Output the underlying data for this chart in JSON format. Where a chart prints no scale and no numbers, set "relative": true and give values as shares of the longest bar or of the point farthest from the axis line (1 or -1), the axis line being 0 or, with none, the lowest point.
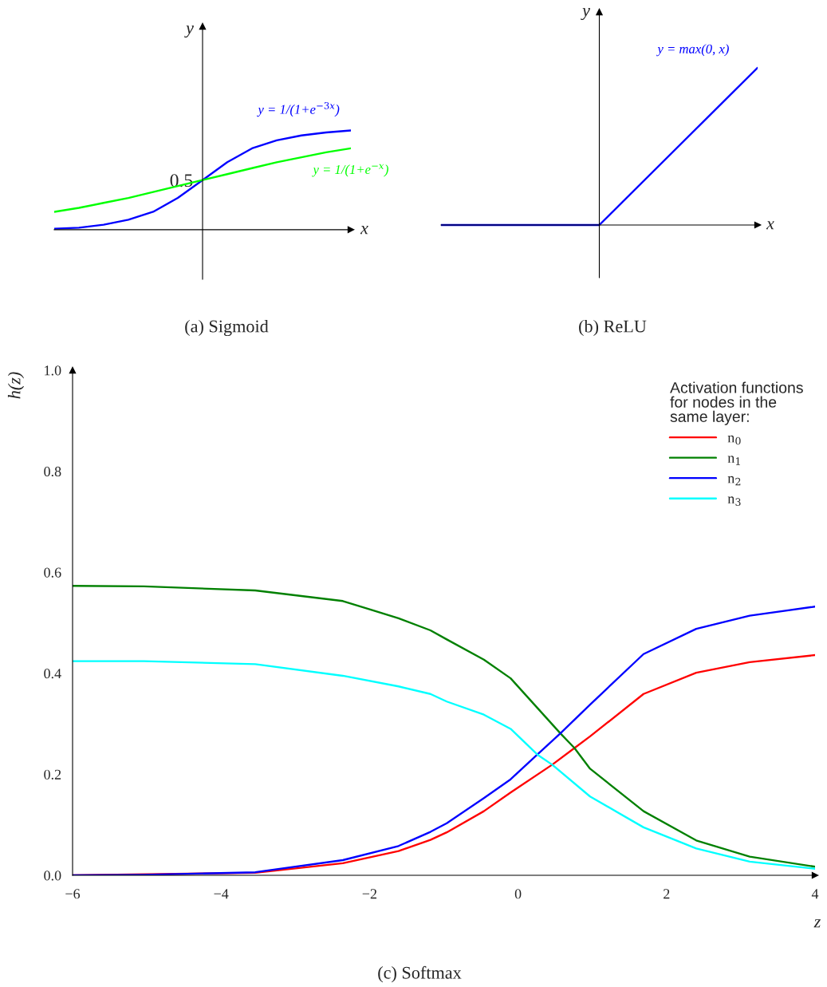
{
  "chart_data": [
    {
      "type": "line",
      "title": "(a) Sigmoid",
      "xlabel": "x",
      "ylabel": "y",
      "relative": true,
      "categories": [
        null,
        null,
        null,
        null,
        null,
        null,
        null,
        null,
        null,
        null,
        null,
        null,
        null
      ],
      "series": [
        {
          "name": "y = 1/(1+e$^{−3x}$)",
          "color": "#0000ff",
          "values": [
            0.01,
            0.02,
            0.05,
            0.1,
            0.18,
            0.32,
            0.5,
            0.68,
            0.82,
            0.9,
            0.95,
            0.98,
            1.0
          ]
        },
        {
          "name": "y = 1/(1+e$^{−x}$)",
          "color": "#00ff00",
          "values": [
            0.18,
            0.22,
            0.27,
            0.32,
            0.38,
            0.44,
            0.5,
            0.56,
            0.62,
            0.68,
            0.73,
            0.78,
            0.82
          ]
        }
      ],
      "annotations": [
        "0.5"
      ]
    },
    {
      "type": "line",
      "title": "(b) ReLU",
      "xlabel": "x",
      "ylabel": "y",
      "relative": true,
      "categories": [
        null,
        null,
        null
      ],
      "series": [
        {
          "name": "y = max(0, x)",
          "color": "#0000ff",
          "values": [
            0,
            0,
            1
          ]
        }
      ]
    },
    {
      "type": "line",
      "title": "(c) Softmax",
      "xlabel": "z",
      "ylabel": "h(z)",
      "xlim": [
        -6,
        4
      ],
      "ylim": [
        0,
        1
      ],
      "xticks": [
        {
          "value": -6,
          "label": "−6"
        },
        {
          "value": -4,
          "label": "−4"
        },
        {
          "value": -2,
          "label": "−2"
        },
        0,
        2,
        4
      ],
      "yticks": [
        {
          "value": 0,
          "label": "0.0"
        },
        {
          "value": 0.2,
          "label": "0.2"
        },
        {
          "value": 0.4,
          "label": "0.4"
        },
        {
          "value": 0.6,
          "label": "0.6"
        },
        {
          "value": 0.8,
          "label": "0.8"
        },
        {
          "value": 1,
          "label": "1.0"
        }
      ],
      "legend": "top right",
      "legend_title": "Activation functions\nfor nodes in the\nsame layer:",
      "series": [
        {
          "name": "n$_{0}$",
          "color": "#ff0000",
          "x": [
            -6,
            -5.04,
            -3.54,
            -2.36,
            -1.61,
            -1.18,
            -0.96,
            -0.46,
            -0.1,
            0.46,
            0.76,
            0.97,
            1.69,
            2.4,
            3.12,
            4
          ],
          "values": [
            0,
            null,
            0.005,
            0.024,
            0.048,
            0.07,
            0.085,
            0.127,
            0.164,
            0.219,
            0.252,
            0.275,
            0.359,
            0.401,
            0.422,
            0.436
          ]
        },
        {
          "name": "n$_{1}$",
          "color": "#008000",
          "x": [
            -6,
            -5.04,
            -3.54,
            -2.36,
            -1.61,
            -1.18,
            -0.96,
            -0.46,
            -0.1,
            0.57,
            0.76,
            0.97,
            1.69,
            2.4,
            3.12,
            4
          ],
          "values": [
            0.573,
            0.572,
            0.564,
            0.543,
            0.509,
            0.485,
            0.467,
            0.427,
            0.39,
            0.281,
            0.252,
            0.211,
            0.127,
            0.069,
            0.037,
            0.017
          ]
        },
        {
          "name": "n$_{2}$",
          "color": "#0000ff",
          "x": [
            -6,
            -5.04,
            -3.54,
            -2.36,
            -1.61,
            -1.18,
            -0.96,
            -0.46,
            -0.1,
            0.26,
            0.57,
            0.97,
            1.69,
            2.4,
            3.12,
            4
          ],
          "values": [
            0,
            0.001,
            0.006,
            0.03,
            0.058,
            0.086,
            0.103,
            0.153,
            0.19,
            0.239,
            0.281,
            0.338,
            0.438,
            0.488,
            0.514,
            0.532
          ]
        },
        {
          "name": "n$_{3}$",
          "color": "#00ffff",
          "x": [
            -6,
            -5.04,
            -3.54,
            -2.36,
            -1.61,
            -1.18,
            -0.96,
            -0.46,
            -0.1,
            0.26,
            0.46,
            0.97,
            1.69,
            2.4,
            3.12,
            4
          ],
          "values": [
            0.424,
            0.424,
            0.418,
            0.395,
            0.374,
            0.359,
            0.344,
            0.318,
            0.29,
            0.239,
            0.219,
            0.156,
            0.095,
            0.053,
            0.027,
            0.013
          ]
        }
      ]
    }
  ]
}
